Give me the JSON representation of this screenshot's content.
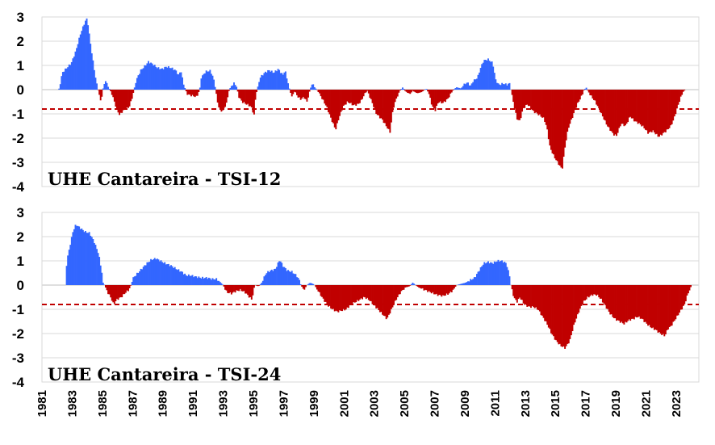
{
  "colors": {
    "positive": "#3366ff",
    "negative": "#c00000",
    "threshold": "#c00000",
    "grid": "#d9d9d9"
  },
  "chart_data": [
    {
      "type": "bar",
      "title": "UHE Cantareira - TSI-12",
      "ylim": [
        -4,
        3
      ],
      "yticks": [
        "3",
        "2",
        "1",
        "0",
        "-1",
        "-2",
        "-3",
        "-4"
      ],
      "xlim": [
        1981,
        2024.5
      ],
      "threshold": -0.8,
      "anchors": [
        [
          1982.0,
          0
        ],
        [
          1982.1,
          0.05
        ],
        [
          1982.3,
          0.7
        ],
        [
          1982.6,
          0.9
        ],
        [
          1982.9,
          1.1
        ],
        [
          1983.2,
          1.6
        ],
        [
          1983.5,
          2.3
        ],
        [
          1983.8,
          2.8
        ],
        [
          1983.95,
          2.95
        ],
        [
          1984.1,
          2.2
        ],
        [
          1984.3,
          1.3
        ],
        [
          1984.5,
          0.5
        ],
        [
          1984.62,
          0.1
        ],
        [
          1984.7,
          -0.1
        ],
        [
          1984.85,
          -0.5
        ],
        [
          1985.0,
          0.05
        ],
        [
          1985.15,
          0.4
        ],
        [
          1985.3,
          0.15
        ],
        [
          1985.45,
          0
        ],
        [
          1985.6,
          -0.2
        ],
        [
          1985.9,
          -0.8
        ],
        [
          1986.1,
          -1.05
        ],
        [
          1986.4,
          -0.8
        ],
        [
          1986.7,
          -0.75
        ],
        [
          1986.9,
          -0.4
        ],
        [
          1987.05,
          0
        ],
        [
          1987.2,
          0.4
        ],
        [
          1987.5,
          0.8
        ],
        [
          1987.8,
          1.0
        ],
        [
          1988.0,
          1.15
        ],
        [
          1988.3,
          1.05
        ],
        [
          1988.6,
          0.9
        ],
        [
          1988.9,
          0.85
        ],
        [
          1989.2,
          0.95
        ],
        [
          1989.5,
          0.9
        ],
        [
          1989.8,
          0.8
        ],
        [
          1990.0,
          0.6
        ],
        [
          1990.15,
          0.8
        ],
        [
          1990.3,
          0.3
        ],
        [
          1990.45,
          0
        ],
        [
          1990.6,
          -0.2
        ],
        [
          1990.9,
          -0.25
        ],
        [
          1991.2,
          -0.3
        ],
        [
          1991.4,
          0
        ],
        [
          1991.5,
          0.5
        ],
        [
          1991.8,
          0.75
        ],
        [
          1992.1,
          0.78
        ],
        [
          1992.3,
          0.5
        ],
        [
          1992.45,
          0
        ],
        [
          1992.6,
          -0.6
        ],
        [
          1992.8,
          -0.9
        ],
        [
          1993.0,
          -0.8
        ],
        [
          1993.2,
          -0.5
        ],
        [
          1993.35,
          0
        ],
        [
          1993.5,
          0.15
        ],
        [
          1993.7,
          0.28
        ],
        [
          1993.85,
          0.1
        ],
        [
          1994.0,
          -0.3
        ],
        [
          1994.2,
          -0.5
        ],
        [
          1994.5,
          -0.6
        ],
        [
          1994.8,
          -0.7
        ],
        [
          1995.0,
          -1.05
        ],
        [
          1995.1,
          -0.3
        ],
        [
          1995.2,
          0
        ],
        [
          1995.4,
          0.5
        ],
        [
          1995.7,
          0.7
        ],
        [
          1996.0,
          0.8
        ],
        [
          1996.3,
          0.7
        ],
        [
          1996.6,
          0.85
        ],
        [
          1996.9,
          0.6
        ],
        [
          1997.05,
          0.8
        ],
        [
          1997.2,
          0.4
        ],
        [
          1997.35,
          0
        ],
        [
          1997.5,
          -0.3
        ],
        [
          1997.7,
          -0.05
        ],
        [
          1997.9,
          -0.3
        ],
        [
          1998.1,
          -0.4
        ],
        [
          1998.3,
          -0.3
        ],
        [
          1998.5,
          -0.5
        ],
        [
          1998.7,
          0
        ],
        [
          1998.85,
          0.25
        ],
        [
          1999.0,
          0.1
        ],
        [
          1999.15,
          0
        ],
        [
          1999.4,
          -0.25
        ],
        [
          1999.8,
          -0.7
        ],
        [
          2000.1,
          -1.2
        ],
        [
          2000.4,
          -1.65
        ],
        [
          2000.6,
          -1.2
        ],
        [
          2000.9,
          -0.7
        ],
        [
          2001.2,
          -0.5
        ],
        [
          2001.6,
          -0.65
        ],
        [
          2001.9,
          -0.6
        ],
        [
          2002.1,
          -0.45
        ],
        [
          2002.3,
          -0.2
        ],
        [
          2002.5,
          -0.05
        ],
        [
          2002.8,
          -0.5
        ],
        [
          2003.1,
          -1.0
        ],
        [
          2003.5,
          -1.25
        ],
        [
          2003.8,
          -1.55
        ],
        [
          2004.0,
          -1.75
        ],
        [
          2004.2,
          -0.8
        ],
        [
          2004.4,
          -0.4
        ],
        [
          2004.6,
          -0.1
        ],
        [
          2004.7,
          0
        ],
        [
          2004.85,
          0.1
        ],
        [
          2005.0,
          -0.05
        ],
        [
          2005.3,
          -0.2
        ],
        [
          2005.5,
          -0.05
        ],
        [
          2005.8,
          -0.15
        ],
        [
          2006.1,
          -0.1
        ],
        [
          2006.4,
          0.05
        ],
        [
          2006.6,
          -0.2
        ],
        [
          2006.8,
          -0.7
        ],
        [
          2007.0,
          -0.85
        ],
        [
          2007.2,
          -0.5
        ],
        [
          2007.5,
          -0.55
        ],
        [
          2007.8,
          -0.4
        ],
        [
          2008.0,
          -0.2
        ],
        [
          2008.2,
          0
        ],
        [
          2008.4,
          0.1
        ],
        [
          2008.7,
          0.05
        ],
        [
          2008.9,
          0.2
        ],
        [
          2009.1,
          0.3
        ],
        [
          2009.35,
          0.15
        ],
        [
          2009.5,
          0.35
        ],
        [
          2009.8,
          0.5
        ],
        [
          2010.0,
          0.9
        ],
        [
          2010.2,
          1.2
        ],
        [
          2010.5,
          1.25
        ],
        [
          2010.8,
          1.1
        ],
        [
          2011.0,
          0.4
        ],
        [
          2011.2,
          0.2
        ],
        [
          2011.5,
          0.25
        ],
        [
          2011.8,
          0.2
        ],
        [
          2011.9,
          0.3
        ],
        [
          2012.0,
          0
        ],
        [
          2012.2,
          -0.6
        ],
        [
          2012.4,
          -1.2
        ],
        [
          2012.6,
          -1.3
        ],
        [
          2012.8,
          -0.8
        ],
        [
          2013.1,
          -0.6
        ],
        [
          2013.5,
          -0.9
        ],
        [
          2013.9,
          -1.05
        ],
        [
          2014.2,
          -1.2
        ],
        [
          2014.4,
          -1.6
        ],
        [
          2014.6,
          -2.4
        ],
        [
          2014.9,
          -2.8
        ],
        [
          2015.2,
          -3.1
        ],
        [
          2015.4,
          -3.3
        ],
        [
          2015.6,
          -2.3
        ],
        [
          2015.8,
          -1.6
        ],
        [
          2016.1,
          -1.1
        ],
        [
          2016.4,
          -0.6
        ],
        [
          2016.7,
          -0.25
        ],
        [
          2016.85,
          0
        ],
        [
          2017.0,
          0.08
        ],
        [
          2017.1,
          -0.05
        ],
        [
          2017.3,
          -0.25
        ],
        [
          2017.6,
          -0.5
        ],
        [
          2018.0,
          -1.0
        ],
        [
          2018.4,
          -1.5
        ],
        [
          2018.8,
          -1.85
        ],
        [
          2019.0,
          -1.9
        ],
        [
          2019.3,
          -1.4
        ],
        [
          2019.6,
          -1.5
        ],
        [
          2019.9,
          -1.1
        ],
        [
          2020.2,
          -1.3
        ],
        [
          2020.5,
          -1.4
        ],
        [
          2020.8,
          -1.55
        ],
        [
          2021.1,
          -1.8
        ],
        [
          2021.4,
          -1.7
        ],
        [
          2021.8,
          -1.95
        ],
        [
          2022.1,
          -1.8
        ],
        [
          2022.3,
          -1.7
        ],
        [
          2022.6,
          -1.5
        ],
        [
          2022.8,
          -1.2
        ],
        [
          2023.0,
          -0.8
        ],
        [
          2023.2,
          -0.4
        ],
        [
          2023.4,
          -0.1
        ],
        [
          2023.55,
          0
        ]
      ]
    },
    {
      "type": "bar",
      "title": "UHE Cantareira - TSI-24",
      "ylim": [
        -4,
        3
      ],
      "yticks": [
        "3",
        "2",
        "1",
        "0",
        "-1",
        "-2",
        "-3",
        "-4"
      ],
      "xlim": [
        1981,
        2024.5
      ],
      "threshold": -0.8,
      "anchors": [
        [
          1982.0,
          0
        ],
        [
          1982.5,
          0
        ],
        [
          1982.6,
          1.0
        ],
        [
          1982.8,
          1.6
        ],
        [
          1983.0,
          2.2
        ],
        [
          1983.2,
          2.5
        ],
        [
          1983.5,
          2.35
        ],
        [
          1983.8,
          2.2
        ],
        [
          1984.1,
          2.15
        ],
        [
          1984.4,
          1.8
        ],
        [
          1984.7,
          1.3
        ],
        [
          1984.9,
          0.6
        ],
        [
          1985.0,
          0.1
        ],
        [
          1985.1,
          0
        ],
        [
          1985.3,
          -0.3
        ],
        [
          1985.5,
          -0.5
        ],
        [
          1985.7,
          -0.8
        ],
        [
          1985.9,
          -0.6
        ],
        [
          1986.2,
          -0.5
        ],
        [
          1986.5,
          -0.3
        ],
        [
          1986.7,
          -0.2
        ],
        [
          1986.85,
          0
        ],
        [
          1987.0,
          0.3
        ],
        [
          1987.3,
          0.5
        ],
        [
          1987.6,
          0.7
        ],
        [
          1987.9,
          0.9
        ],
        [
          1988.2,
          1.05
        ],
        [
          1988.5,
          1.1
        ],
        [
          1988.8,
          1.0
        ],
        [
          1989.1,
          0.9
        ],
        [
          1989.5,
          0.8
        ],
        [
          1989.9,
          0.65
        ],
        [
          1990.2,
          0.55
        ],
        [
          1990.5,
          0.4
        ],
        [
          1990.8,
          0.4
        ],
        [
          1991.1,
          0.35
        ],
        [
          1991.5,
          0.3
        ],
        [
          1991.9,
          0.3
        ],
        [
          1992.2,
          0.25
        ],
        [
          1992.5,
          0.25
        ],
        [
          1992.8,
          0.1
        ],
        [
          1992.95,
          0
        ],
        [
          1993.2,
          -0.3
        ],
        [
          1993.5,
          -0.35
        ],
        [
          1993.8,
          -0.25
        ],
        [
          1994.1,
          -0.2
        ],
        [
          1994.4,
          -0.3
        ],
        [
          1994.7,
          -0.5
        ],
        [
          1994.85,
          -0.6
        ],
        [
          1994.95,
          -0.3
        ],
        [
          1995.05,
          0
        ],
        [
          1995.3,
          -0.05
        ],
        [
          1995.5,
          0.1
        ],
        [
          1995.8,
          0.5
        ],
        [
          1996.1,
          0.6
        ],
        [
          1996.4,
          0.65
        ],
        [
          1996.7,
          1.05
        ],
        [
          1996.9,
          0.8
        ],
        [
          1997.2,
          0.6
        ],
        [
          1997.5,
          0.55
        ],
        [
          1997.8,
          0.4
        ],
        [
          1998.0,
          0.2
        ],
        [
          1998.1,
          0
        ],
        [
          1998.3,
          -0.2
        ],
        [
          1998.5,
          0
        ],
        [
          1998.7,
          0.1
        ],
        [
          1998.9,
          0.05
        ],
        [
          1999.0,
          0
        ],
        [
          1999.3,
          -0.3
        ],
        [
          1999.6,
          -0.6
        ],
        [
          1999.9,
          -0.85
        ],
        [
          2000.2,
          -1.0
        ],
        [
          2000.5,
          -1.1
        ],
        [
          2000.8,
          -1.05
        ],
        [
          2001.1,
          -1.0
        ],
        [
          2001.4,
          -0.8
        ],
        [
          2001.7,
          -0.7
        ],
        [
          2002.0,
          -0.6
        ],
        [
          2002.3,
          -0.5
        ],
        [
          2002.6,
          -0.6
        ],
        [
          2002.9,
          -0.8
        ],
        [
          2003.2,
          -1.0
        ],
        [
          2003.5,
          -1.2
        ],
        [
          2003.8,
          -1.4
        ],
        [
          2004.1,
          -1.0
        ],
        [
          2004.4,
          -0.6
        ],
        [
          2004.7,
          -0.3
        ],
        [
          2005.0,
          -0.1
        ],
        [
          2005.3,
          -0.05
        ],
        [
          2005.5,
          0.1
        ],
        [
          2005.7,
          0
        ],
        [
          2005.9,
          -0.1
        ],
        [
          2006.3,
          -0.2
        ],
        [
          2006.7,
          -0.3
        ],
        [
          2007.1,
          -0.4
        ],
        [
          2007.5,
          -0.45
        ],
        [
          2007.9,
          -0.35
        ],
        [
          2008.2,
          -0.2
        ],
        [
          2008.4,
          0
        ],
        [
          2008.7,
          0.05
        ],
        [
          2009.0,
          0.1
        ],
        [
          2009.3,
          0.2
        ],
        [
          2009.6,
          0.3
        ],
        [
          2009.9,
          0.6
        ],
        [
          2010.2,
          0.9
        ],
        [
          2010.5,
          0.95
        ],
        [
          2010.8,
          0.9
        ],
        [
          2011.1,
          1.0
        ],
        [
          2011.4,
          1.0
        ],
        [
          2011.7,
          0.9
        ],
        [
          2011.95,
          0.3
        ],
        [
          2012.0,
          0
        ],
        [
          2012.2,
          -0.5
        ],
        [
          2012.4,
          -0.7
        ],
        [
          2012.6,
          -0.5
        ],
        [
          2012.9,
          -0.8
        ],
        [
          2013.2,
          -0.9
        ],
        [
          2013.5,
          -0.9
        ],
        [
          2013.8,
          -1.0
        ],
        [
          2014.1,
          -1.3
        ],
        [
          2014.4,
          -1.6
        ],
        [
          2014.7,
          -2.0
        ],
        [
          2015.0,
          -2.3
        ],
        [
          2015.3,
          -2.5
        ],
        [
          2015.6,
          -2.6
        ],
        [
          2015.9,
          -2.3
        ],
        [
          2016.2,
          -1.6
        ],
        [
          2016.5,
          -1.1
        ],
        [
          2016.8,
          -0.7
        ],
        [
          2017.1,
          -0.5
        ],
        [
          2017.4,
          -0.4
        ],
        [
          2017.7,
          -0.4
        ],
        [
          2018.0,
          -0.6
        ],
        [
          2018.3,
          -0.9
        ],
        [
          2018.6,
          -1.2
        ],
        [
          2018.9,
          -1.4
        ],
        [
          2019.2,
          -1.5
        ],
        [
          2019.5,
          -1.6
        ],
        [
          2019.8,
          -1.45
        ],
        [
          2020.1,
          -1.4
        ],
        [
          2020.4,
          -1.3
        ],
        [
          2020.7,
          -1.4
        ],
        [
          2021.0,
          -1.6
        ],
        [
          2021.3,
          -1.75
        ],
        [
          2021.6,
          -1.85
        ],
        [
          2021.9,
          -2.0
        ],
        [
          2022.2,
          -2.1
        ],
        [
          2022.4,
          -1.8
        ],
        [
          2022.6,
          -1.7
        ],
        [
          2022.9,
          -1.4
        ],
        [
          2023.2,
          -1.1
        ],
        [
          2023.5,
          -0.8
        ],
        [
          2023.7,
          -0.4
        ],
        [
          2023.9,
          -0.1
        ],
        [
          2024.0,
          0
        ]
      ]
    }
  ],
  "x_axis": {
    "tick_labels": [
      "1981",
      "1983",
      "1985",
      "1987",
      "1989",
      "1991",
      "1993",
      "1995",
      "1997",
      "1999",
      "2001",
      "2003",
      "2005",
      "2007",
      "2009",
      "2011",
      "2013",
      "2015",
      "2017",
      "2019",
      "2021",
      "2023"
    ]
  }
}
